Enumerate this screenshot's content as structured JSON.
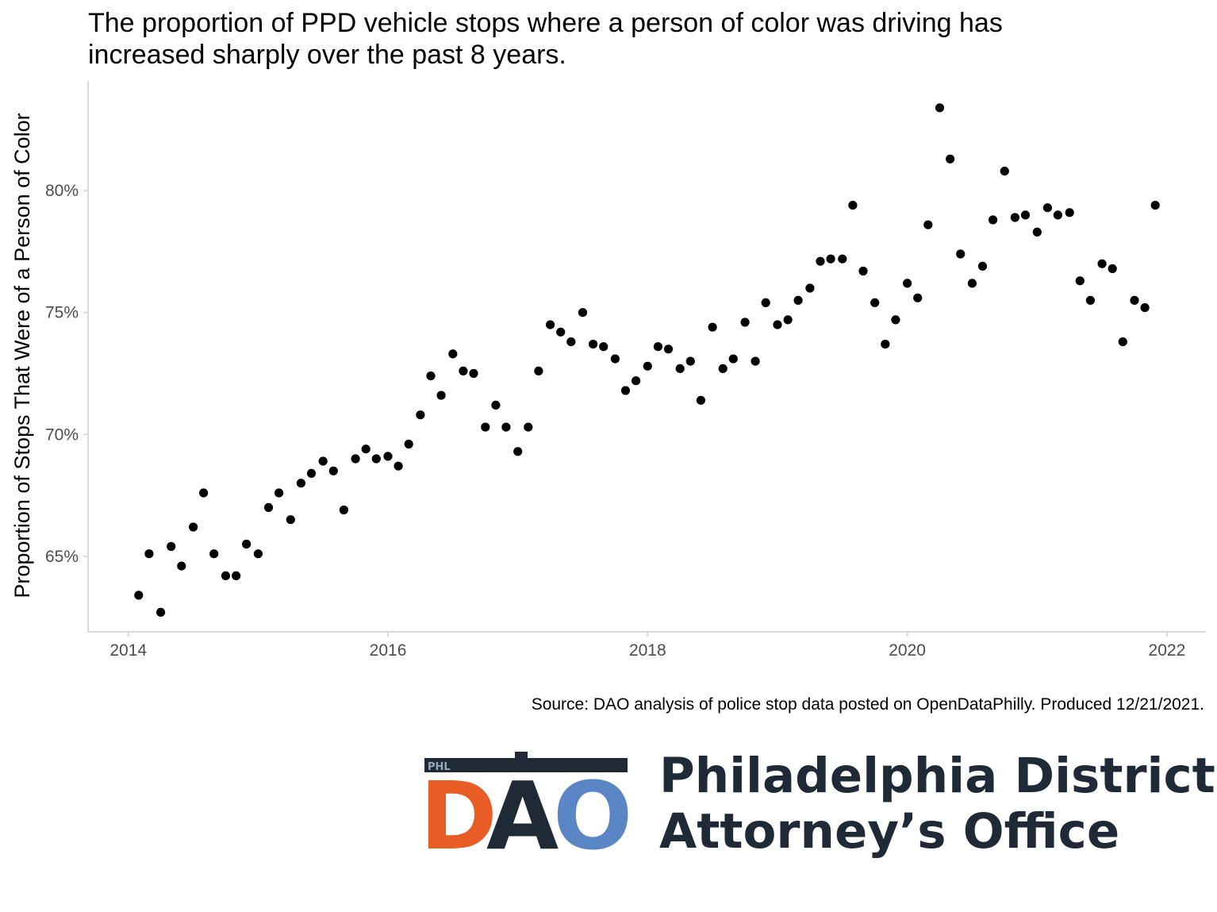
{
  "chart_data": {
    "type": "scatter",
    "title": "The proportion of PPD vehicle stops where a person of color was driving has increased sharply over the past 8 years.",
    "title_lines": [
      "The proportion of PPD vehicle stops where a person of color was driving has",
      "increased sharply over the past 8 years."
    ],
    "ylabel": "Proportion of Stops That Were of a Person of Color",
    "xlabel": "",
    "x_ticks": [
      2014,
      2016,
      2018,
      2020,
      2022
    ],
    "y_ticks": [
      0.65,
      0.7,
      0.75,
      0.8
    ],
    "y_tick_labels": [
      "65%",
      "70%",
      "75%",
      "80%"
    ],
    "xlim": [
      2013.69,
      2022.3
    ],
    "ylim": [
      0.619,
      0.845
    ],
    "grid": false,
    "point_color": "#000000",
    "points": [
      [
        2014.08,
        0.634
      ],
      [
        2014.16,
        0.651
      ],
      [
        2014.25,
        0.627
      ],
      [
        2014.33,
        0.654
      ],
      [
        2014.41,
        0.646
      ],
      [
        2014.5,
        0.662
      ],
      [
        2014.58,
        0.676
      ],
      [
        2014.66,
        0.651
      ],
      [
        2014.75,
        0.642
      ],
      [
        2014.83,
        0.642
      ],
      [
        2014.91,
        0.655
      ],
      [
        2015.0,
        0.651
      ],
      [
        2015.08,
        0.67
      ],
      [
        2015.16,
        0.676
      ],
      [
        2015.25,
        0.665
      ],
      [
        2015.33,
        0.68
      ],
      [
        2015.41,
        0.684
      ],
      [
        2015.5,
        0.689
      ],
      [
        2015.58,
        0.685
      ],
      [
        2015.66,
        0.669
      ],
      [
        2015.75,
        0.69
      ],
      [
        2015.83,
        0.694
      ],
      [
        2015.91,
        0.69
      ],
      [
        2016.0,
        0.691
      ],
      [
        2016.08,
        0.687
      ],
      [
        2016.16,
        0.696
      ],
      [
        2016.25,
        0.708
      ],
      [
        2016.33,
        0.724
      ],
      [
        2016.41,
        0.716
      ],
      [
        2016.5,
        0.733
      ],
      [
        2016.58,
        0.726
      ],
      [
        2016.66,
        0.725
      ],
      [
        2016.75,
        0.703
      ],
      [
        2016.83,
        0.712
      ],
      [
        2016.91,
        0.703
      ],
      [
        2017.0,
        0.693
      ],
      [
        2017.08,
        0.703
      ],
      [
        2017.16,
        0.726
      ],
      [
        2017.25,
        0.745
      ],
      [
        2017.33,
        0.742
      ],
      [
        2017.41,
        0.738
      ],
      [
        2017.5,
        0.75
      ],
      [
        2017.58,
        0.737
      ],
      [
        2017.66,
        0.736
      ],
      [
        2017.75,
        0.731
      ],
      [
        2017.83,
        0.718
      ],
      [
        2017.91,
        0.722
      ],
      [
        2018.0,
        0.728
      ],
      [
        2018.08,
        0.736
      ],
      [
        2018.16,
        0.735
      ],
      [
        2018.25,
        0.727
      ],
      [
        2018.33,
        0.73
      ],
      [
        2018.41,
        0.714
      ],
      [
        2018.5,
        0.744
      ],
      [
        2018.58,
        0.727
      ],
      [
        2018.66,
        0.731
      ],
      [
        2018.75,
        0.746
      ],
      [
        2018.83,
        0.73
      ],
      [
        2018.91,
        0.754
      ],
      [
        2019.0,
        0.745
      ],
      [
        2019.08,
        0.747
      ],
      [
        2019.16,
        0.755
      ],
      [
        2019.25,
        0.76
      ],
      [
        2019.33,
        0.771
      ],
      [
        2019.41,
        0.772
      ],
      [
        2019.5,
        0.772
      ],
      [
        2019.58,
        0.794
      ],
      [
        2019.66,
        0.767
      ],
      [
        2019.75,
        0.754
      ],
      [
        2019.83,
        0.737
      ],
      [
        2019.91,
        0.747
      ],
      [
        2020.0,
        0.762
      ],
      [
        2020.08,
        0.756
      ],
      [
        2020.16,
        0.786
      ],
      [
        2020.25,
        0.834
      ],
      [
        2020.33,
        0.813
      ],
      [
        2020.41,
        0.774
      ],
      [
        2020.5,
        0.762
      ],
      [
        2020.58,
        0.769
      ],
      [
        2020.66,
        0.788
      ],
      [
        2020.75,
        0.808
      ],
      [
        2020.83,
        0.789
      ],
      [
        2020.91,
        0.79
      ],
      [
        2021.0,
        0.783
      ],
      [
        2021.08,
        0.793
      ],
      [
        2021.16,
        0.79
      ],
      [
        2021.25,
        0.791
      ],
      [
        2021.33,
        0.763
      ],
      [
        2021.41,
        0.755
      ],
      [
        2021.5,
        0.77
      ],
      [
        2021.58,
        0.768
      ],
      [
        2021.66,
        0.738
      ],
      [
        2021.75,
        0.755
      ],
      [
        2021.83,
        0.752
      ],
      [
        2021.91,
        0.794
      ]
    ]
  },
  "source_note": "Source: DAO analysis of police stop data posted on OpenDataPhilly. Produced 12/21/2021.",
  "logo": {
    "badge": "PHL",
    "letters": [
      "D",
      "A",
      "O"
    ],
    "org_line1": "Philadelphia District",
    "org_line2": "Attorney’s Office",
    "colors": {
      "d": "#e85d26",
      "a": "#1f2a36",
      "o": "#5b86c5",
      "bar": "#1f2a36"
    }
  }
}
